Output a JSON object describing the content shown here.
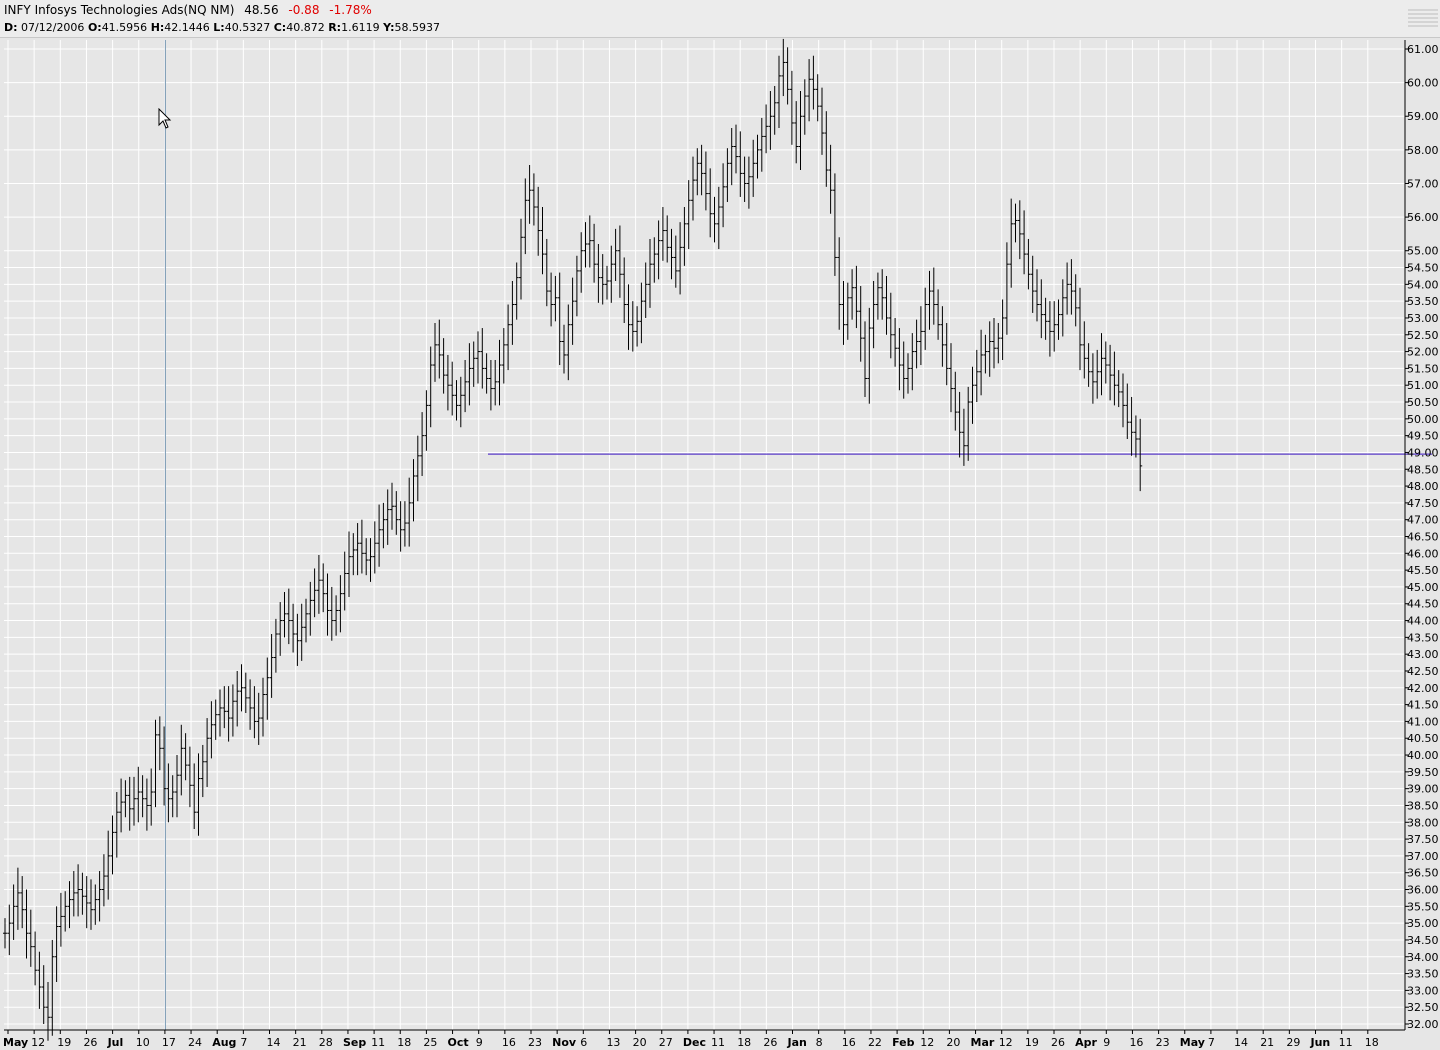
{
  "header": {
    "symbol_title": "INFY Infosys Technologies Ads(NQ NM)",
    "last": "48.56",
    "change": "-0.88",
    "change_pct": "-1.78%",
    "ohlc": {
      "d_label": "D:",
      "d": "07/12/2006",
      "o_label": "O:",
      "o": "41.5956",
      "h_label": "H:",
      "h": "42.1446",
      "l_label": "L:",
      "l": "40.5327",
      "c_label": "C:",
      "c": "40.872",
      "r_label": "R:",
      "r": "1.6119",
      "y_label": "Y:",
      "y": "58.5937"
    }
  },
  "colors": {
    "background": "#e6e6e6",
    "grid": "#ffffff",
    "bars": "#000000",
    "support_line": "#5a3cc8",
    "crosshair": "#7a9ab4",
    "change_text": "#e00000"
  },
  "chart_data": {
    "type": "ohlc",
    "ylim": [
      31.9,
      61.3
    ],
    "y_ticks": [
      "61.00",
      "60.00",
      "59.00",
      "58.00",
      "57.00",
      "56.00",
      "55.00",
      "54.50",
      "54.00",
      "53.50",
      "53.00",
      "52.50",
      "52.00",
      "51.50",
      "51.00",
      "50.50",
      "50.00",
      "49.50",
      "49.00",
      "48.50",
      "48.00",
      "47.50",
      "47.00",
      "46.50",
      "46.00",
      "45.50",
      "45.00",
      "44.50",
      "44.00",
      "43.50",
      "43.00",
      "42.50",
      "42.00",
      "41.50",
      "41.00",
      "40.50",
      "40.00",
      "39.50",
      "39.00",
      "38.50",
      "38.00",
      "37.50",
      "37.00",
      "36.50",
      "36.00",
      "35.50",
      "35.00",
      "34.50",
      "34.00",
      "33.50",
      "33.00",
      "32.50",
      "32.00"
    ],
    "x_ticks": [
      {
        "label": "May",
        "bold": true
      },
      {
        "label": "12"
      },
      {
        "label": "19"
      },
      {
        "label": "26"
      },
      {
        "label": "Jul",
        "bold": true
      },
      {
        "label": "10"
      },
      {
        "label": "17"
      },
      {
        "label": "24"
      },
      {
        "label": "Aug",
        "bold": true
      },
      {
        "label": "7"
      },
      {
        "label": "14"
      },
      {
        "label": "21"
      },
      {
        "label": "28"
      },
      {
        "label": "Sep",
        "bold": true
      },
      {
        "label": "11"
      },
      {
        "label": "18"
      },
      {
        "label": "25"
      },
      {
        "label": "Oct",
        "bold": true
      },
      {
        "label": "9"
      },
      {
        "label": "16"
      },
      {
        "label": "23"
      },
      {
        "label": "Nov",
        "bold": true
      },
      {
        "label": "6"
      },
      {
        "label": "13"
      },
      {
        "label": "20"
      },
      {
        "label": "27"
      },
      {
        "label": "Dec",
        "bold": true
      },
      {
        "label": "11"
      },
      {
        "label": "18"
      },
      {
        "label": "26"
      },
      {
        "label": "Jan",
        "bold": true
      },
      {
        "label": "8"
      },
      {
        "label": "16"
      },
      {
        "label": "22"
      },
      {
        "label": "Feb",
        "bold": true
      },
      {
        "label": "12"
      },
      {
        "label": "20"
      },
      {
        "label": "Mar",
        "bold": true
      },
      {
        "label": "12"
      },
      {
        "label": "19"
      },
      {
        "label": "26"
      },
      {
        "label": "Apr",
        "bold": true
      },
      {
        "label": "9"
      },
      {
        "label": "16"
      },
      {
        "label": "23"
      },
      {
        "label": "May",
        "bold": true
      },
      {
        "label": "7"
      },
      {
        "label": "14"
      },
      {
        "label": "21"
      },
      {
        "label": "29"
      },
      {
        "label": "Jun",
        "bold": true
      },
      {
        "label": "11"
      },
      {
        "label": "18"
      }
    ],
    "support_level": 48.95,
    "crosshair_bar_index": 38,
    "series": [
      {
        "values": [
          34.7,
          35.0,
          35.5,
          35.9,
          35.4,
          34.7,
          34.3,
          33.6,
          33.1,
          32.5,
          32.2,
          34.0,
          34.9,
          35.2,
          35.5,
          35.7,
          35.9,
          36.0,
          35.8,
          35.6,
          35.4,
          35.7,
          36.0,
          36.4,
          37.0,
          37.7,
          38.3,
          38.6,
          38.8,
          38.4,
          38.7,
          38.9,
          38.7,
          38.5,
          38.9,
          40.6,
          40.2,
          39.0,
          38.7,
          38.9,
          39.4,
          40.2,
          39.7,
          39.1,
          38.3,
          39.3,
          39.8,
          40.5,
          40.9,
          41.2,
          41.4,
          41.3,
          41.1,
          41.6,
          41.9,
          42.0,
          41.7,
          41.4,
          41.0,
          41.1,
          41.8,
          42.3,
          42.9,
          43.6,
          44.0,
          44.2,
          44.0,
          43.6,
          43.4,
          43.8,
          44.2,
          44.6,
          44.9,
          45.2,
          44.8,
          44.3,
          44.0,
          44.3,
          44.8,
          45.4,
          45.9,
          46.1,
          46.3,
          46.0,
          45.8,
          45.9,
          46.3,
          46.7,
          47.0,
          47.3,
          47.4,
          47.0,
          46.7,
          46.9,
          47.5,
          48.3,
          48.9,
          49.5,
          50.4,
          51.6,
          52.2,
          51.9,
          51.3,
          51.0,
          50.7,
          50.4,
          50.7,
          51.1,
          51.5,
          51.8,
          52.0,
          51.5,
          51.2,
          50.9,
          51.1,
          51.6,
          52.2,
          52.8,
          53.4,
          54.2,
          55.4,
          56.5,
          56.8,
          56.3,
          55.6,
          54.9,
          53.8,
          53.4,
          53.6,
          52.3,
          51.9,
          52.8,
          53.5,
          54.4,
          55.0,
          55.2,
          55.3,
          54.6,
          54.2,
          54.0,
          54.1,
          54.6,
          55.0,
          54.3,
          53.4,
          52.8,
          52.6,
          52.9,
          53.5,
          54.0,
          54.6,
          54.9,
          55.3,
          55.6,
          55.1,
          54.8,
          54.4,
          55.1,
          55.8,
          56.5,
          57.1,
          57.6,
          57.3,
          56.7,
          56.1,
          55.8,
          56.3,
          56.9,
          57.6,
          58.1,
          57.8,
          57.3,
          57.0,
          57.2,
          57.6,
          58.0,
          58.4,
          58.7,
          59.0,
          59.4,
          60.2,
          60.6,
          59.8,
          58.8,
          58.1,
          59.0,
          59.6,
          60.1,
          59.8,
          59.3,
          58.5,
          57.4,
          56.8,
          54.8,
          53.4,
          52.8,
          53.6,
          53.9,
          53.2,
          52.4,
          51.2,
          52.7,
          53.4,
          53.9,
          53.6,
          53.0,
          52.5,
          52.1,
          51.6,
          51.2,
          51.5,
          52.0,
          52.3,
          52.6,
          53.4,
          53.8,
          53.4,
          52.8,
          52.2,
          51.5,
          50.9,
          50.2,
          49.6,
          49.2,
          50.5,
          51.0,
          51.4,
          51.9,
          52.0,
          52.3,
          52.1,
          52.4,
          53.0,
          54.6,
          55.8,
          55.9,
          55.5,
          54.9,
          54.3,
          53.8,
          53.4,
          53.1,
          52.9,
          52.6,
          52.8,
          53.1,
          53.6,
          54.0,
          53.8,
          53.3,
          52.2,
          51.8,
          51.4,
          51.1,
          51.4,
          51.8,
          51.6,
          51.3,
          51.0,
          50.8,
          50.4,
          49.9,
          49.6,
          49.4,
          48.6
        ]
      }
    ]
  }
}
